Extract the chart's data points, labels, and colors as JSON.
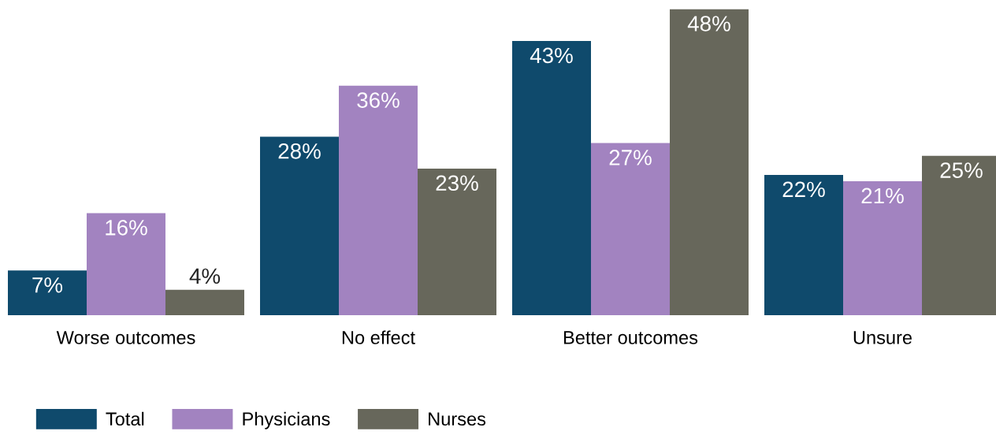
{
  "chart_data": {
    "type": "bar",
    "categories": [
      "Worse outcomes",
      "No effect",
      "Better outcomes",
      "Unsure"
    ],
    "series": [
      {
        "name": "Total",
        "color": "#0f4a6c",
        "values": [
          7,
          28,
          43,
          22
        ],
        "value_labels": [
          "7%",
          "28%",
          "43%",
          "22%"
        ]
      },
      {
        "name": "Physicians",
        "color": "#a283c0",
        "values": [
          16,
          36,
          27,
          21
        ],
        "value_labels": [
          "16%",
          "36%",
          "27%",
          "21%"
        ]
      },
      {
        "name": "Nurses",
        "color": "#67675b",
        "values": [
          4,
          23,
          48,
          25
        ],
        "value_labels": [
          "4%",
          "23%",
          "48%",
          "25%"
        ]
      }
    ],
    "legend": "bottom left",
    "grid": false
  }
}
